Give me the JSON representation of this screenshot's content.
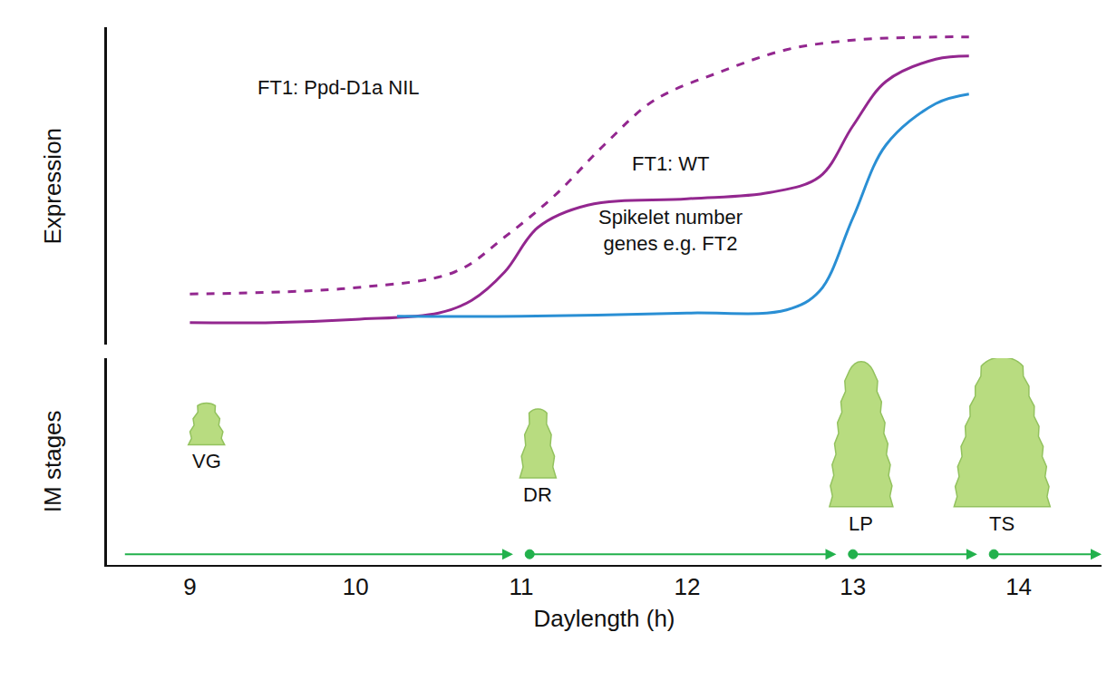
{
  "chart_data": {
    "type": "line",
    "xlabel": "Daylength (h)",
    "ylabel": "Expression",
    "xlim": [
      8.5,
      14.5
    ],
    "xticks": [
      9,
      10,
      11,
      12,
      13,
      14
    ],
    "ylim": [
      0,
      100
    ],
    "tick_labels": "x",
    "grid": false,
    "series": [
      {
        "name": "FT1: Ppd-D1a NIL",
        "color": "#93278f",
        "line_style": "dashed",
        "x": [
          9,
          10,
          10.6,
          10.9,
          11.2,
          11.5,
          11.8,
          12.2,
          12.6,
          13,
          13.5,
          13.7
        ],
        "values": [
          16,
          18,
          23,
          34,
          47,
          63,
          77,
          86,
          93,
          96,
          97,
          97
        ]
      },
      {
        "name": "FT1: WT",
        "color": "#93278f",
        "line_style": "solid",
        "x": [
          9,
          9.5,
          10,
          10.5,
          10.7,
          10.9,
          11.1,
          11.4,
          12,
          12.5,
          12.8,
          13,
          13.2,
          13.5,
          13.7
        ],
        "values": [
          7,
          7,
          8,
          10,
          14,
          23,
          37,
          44,
          46,
          48,
          53,
          69,
          83,
          90,
          91
        ]
      },
      {
        "name": "Spikelet number genes e.g. FT2",
        "color": "#2a8fd4",
        "line_style": "solid",
        "x": [
          10.25,
          11,
          12,
          12.6,
          12.8,
          13,
          13.2,
          13.5,
          13.7
        ],
        "values": [
          9,
          9,
          10,
          11,
          17,
          40,
          63,
          76,
          79
        ]
      }
    ],
    "stages_panel": {
      "ylabel": "IM stages",
      "ylim": [
        0,
        10
      ],
      "color": "#b8dc80",
      "arrow_color": "#22b14c",
      "stages": [
        {
          "label": "VG",
          "x": 9.1
        },
        {
          "label": "DR",
          "x": 11.1
        },
        {
          "label": "LP",
          "x": 13.05
        },
        {
          "label": "TS",
          "x": 13.9
        }
      ]
    }
  }
}
